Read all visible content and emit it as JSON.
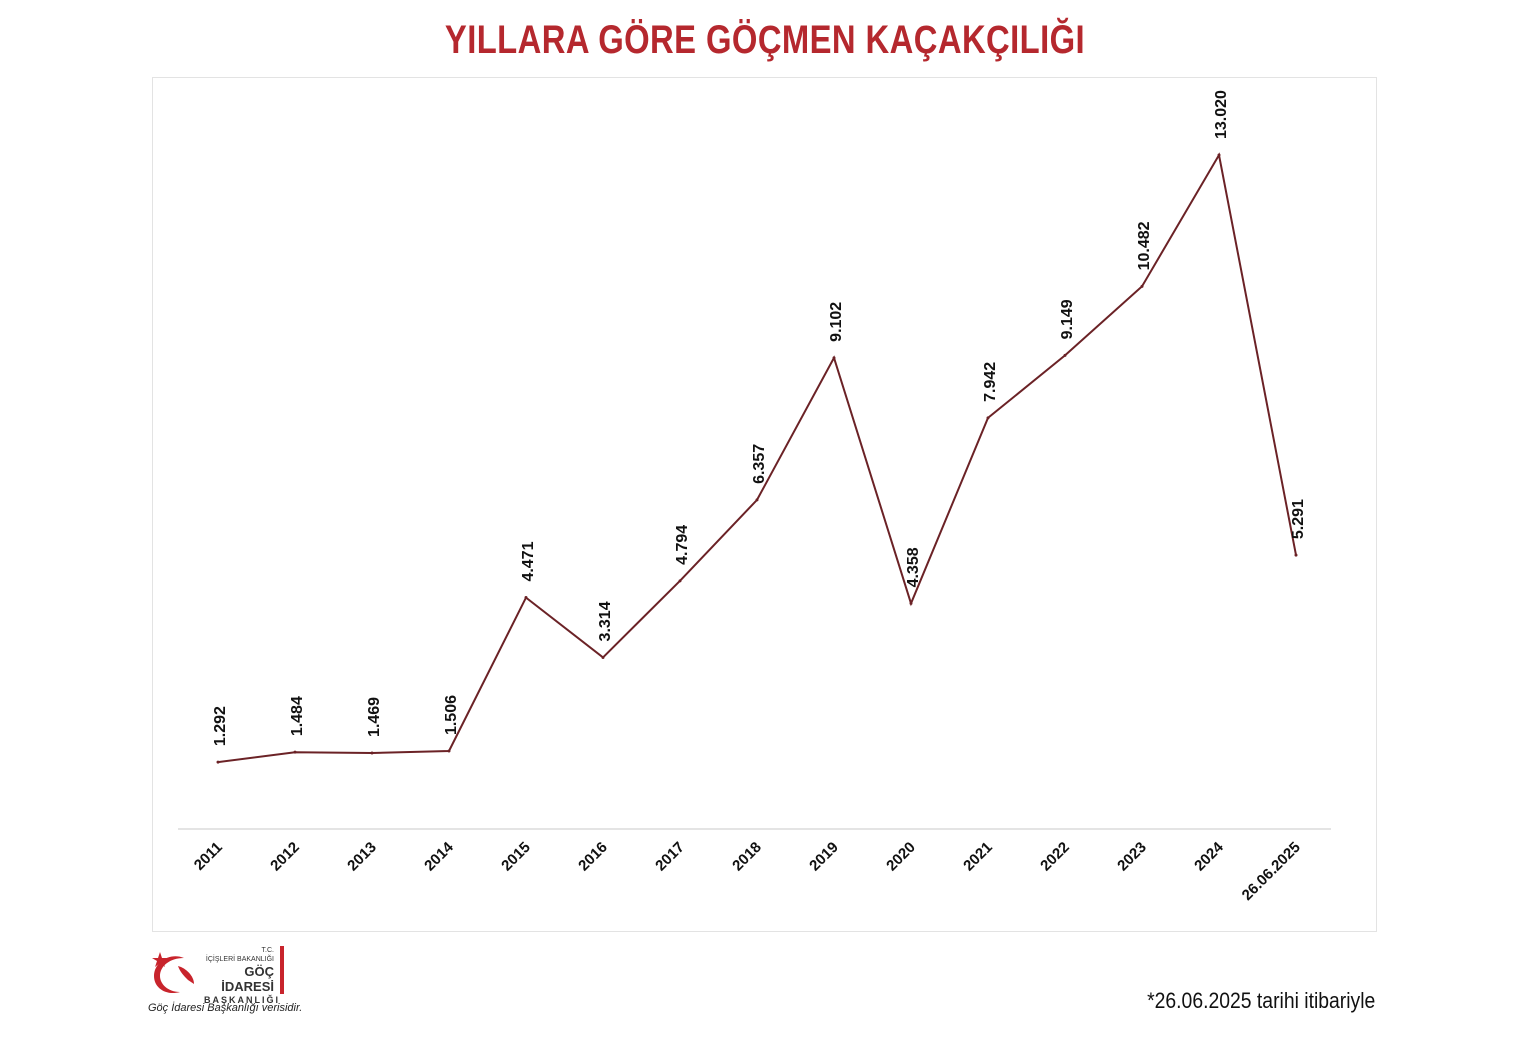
{
  "header": {
    "title": "YILLARA GÖRE GÖÇMEN KAÇAKÇILIĞI"
  },
  "footnote": "*26.06.2025 tarihi itibariyle",
  "logo": {
    "tc": "T.C.",
    "ministry": "İÇİŞLERİ BAKANLIĞI",
    "name": "GÖÇ İDARESİ",
    "sub": "BAŞKANLIĞI",
    "source_note": "Göç İdaresi Başkanlığı verisidir."
  },
  "colors": {
    "title": "#b5282e",
    "line": "#6b2226",
    "brand_red": "#c8242c"
  },
  "chart_data": {
    "type": "line",
    "title": "YILLARA GÖRE GÖÇMEN KAÇAKÇILIĞI",
    "xlabel": "",
    "ylabel": "",
    "ylim": [
      0,
      14000
    ],
    "grid": false,
    "legend": "none",
    "categories": [
      "2011",
      "2012",
      "2013",
      "2014",
      "2015",
      "2016",
      "2017",
      "2018",
      "2019",
      "2020",
      "2021",
      "2022",
      "2023",
      "2024",
      "26.06.2025"
    ],
    "values": [
      1292,
      1484,
      1469,
      1506,
      4471,
      3314,
      4794,
      6357,
      9102,
      4358,
      7942,
      9149,
      10482,
      13020,
      5291
    ],
    "value_labels": [
      "1.292",
      "1.484",
      "1.469",
      "1.506",
      "4.471",
      "3.314",
      "4.794",
      "6.357",
      "9.102",
      "4.358",
      "7.942",
      "9.149",
      "10.482",
      "13.020",
      "5.291"
    ]
  }
}
